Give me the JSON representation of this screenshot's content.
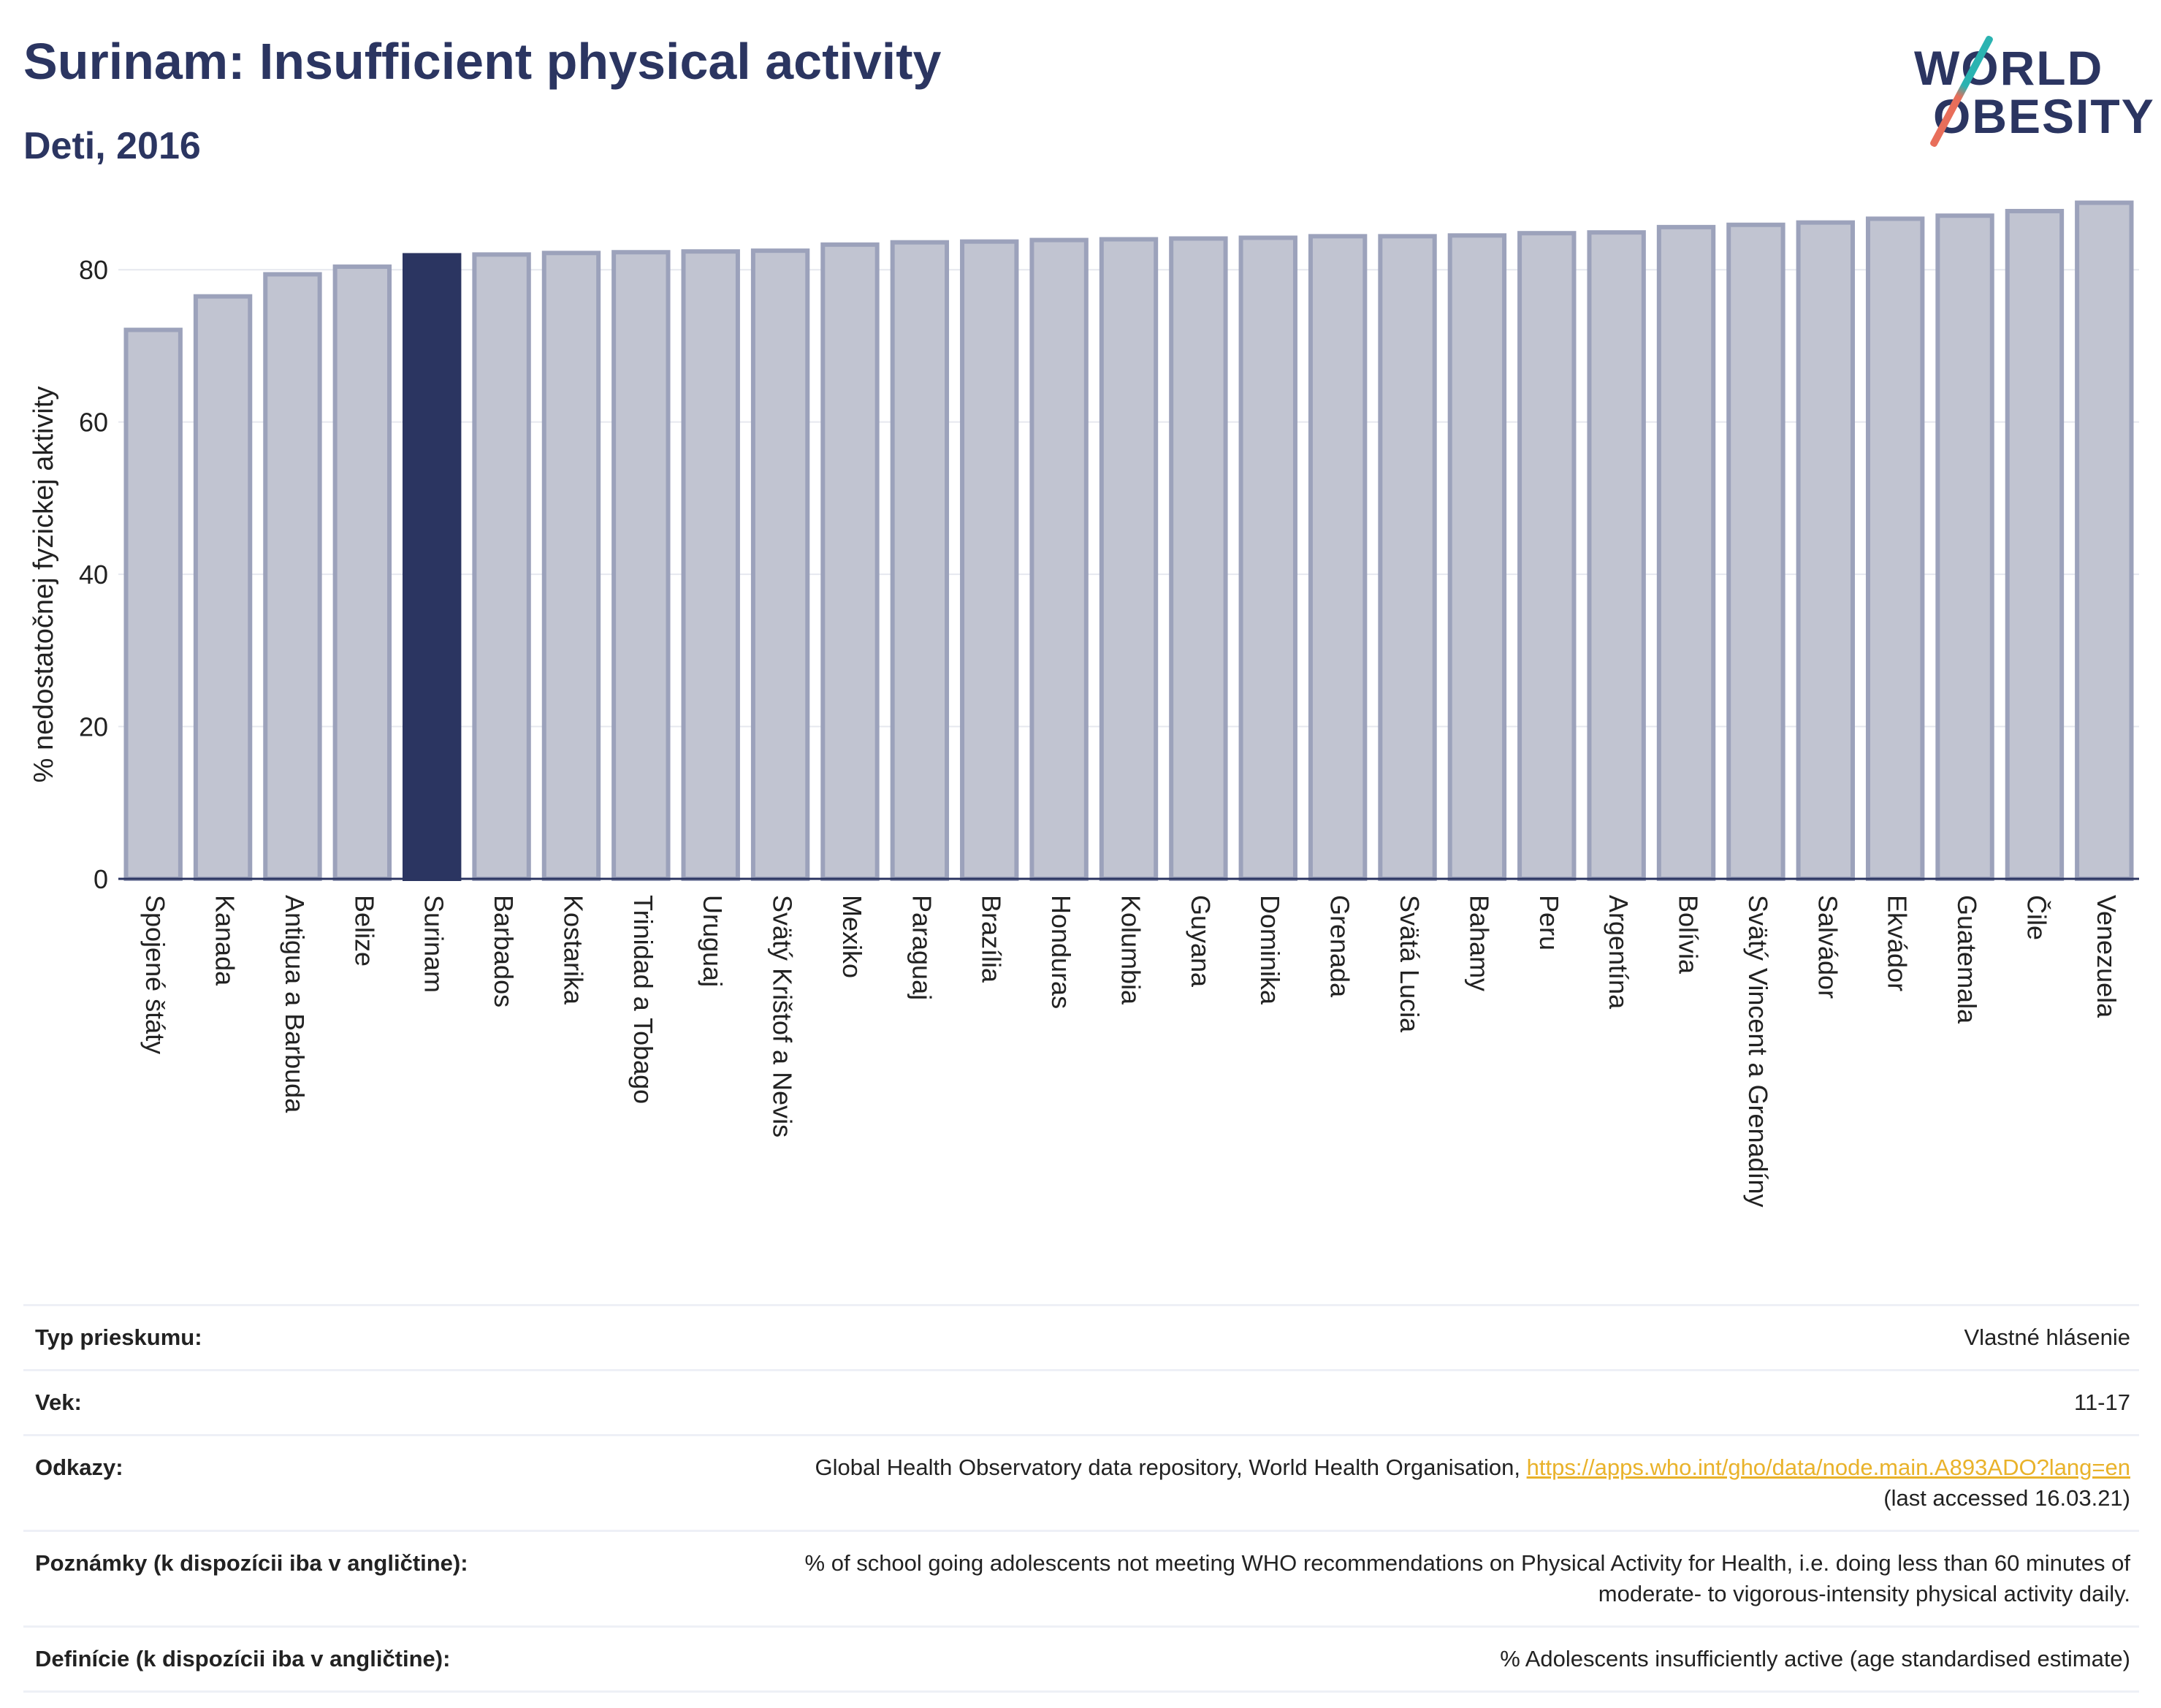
{
  "header": {
    "title": "Surinam: Insufficient physical activity",
    "subtitle": "Deti, 2016"
  },
  "logo": {
    "line1": "WORLD",
    "line2": "OBESITY"
  },
  "chart_data": {
    "type": "bar",
    "ylabel": "% nedostatočnej fyzickej aktivity",
    "ylim": [
      0,
      90
    ],
    "yticks": [
      0,
      20,
      40,
      60,
      80
    ],
    "grid": true,
    "highlight": "Surinam",
    "colors": {
      "bar": "#c1c4d1",
      "bar_edge": "#9ca2bb",
      "highlight": "#2b3561",
      "axis": "#2b3561",
      "grid": "#e6e8ef"
    },
    "categories": [
      "Spojené štáty",
      "Kanada",
      "Antigua a Barbuda",
      "Belize",
      "Surinam",
      "Barbados",
      "Kostarika",
      "Trinidad a Tobago",
      "Uruguaj",
      "Svätý Krištof a Nevis",
      "Mexiko",
      "Paraguaj",
      "Brazília",
      "Honduras",
      "Kolumbia",
      "Guyana",
      "Dominika",
      "Grenada",
      "Svätá Lucia",
      "Bahamy",
      "Peru",
      "Argentína",
      "Bolívia",
      "Svätý Vincent a Grenadíny",
      "Salvádor",
      "Ekvádor",
      "Guatemala",
      "Čile",
      "Venezuela"
    ],
    "values": [
      72.1,
      76.5,
      79.4,
      80.4,
      81.9,
      82.0,
      82.2,
      82.3,
      82.4,
      82.5,
      83.3,
      83.6,
      83.7,
      83.9,
      84.0,
      84.1,
      84.2,
      84.4,
      84.4,
      84.5,
      84.8,
      84.9,
      85.6,
      85.9,
      86.2,
      86.7,
      87.1,
      87.7,
      88.8
    ]
  },
  "meta": {
    "rows": [
      {
        "label": "Typ prieskumu:",
        "value": "Vlastné hlásenie"
      },
      {
        "label": "Vek:",
        "value": "11-17"
      },
      {
        "label": "Odkazy:",
        "value_prefix": "Global Health Observatory data repository, World Health Organisation, ",
        "link": "https://apps.who.int/gho/data/node.main.A893ADO?lang=en",
        "value_suffix": "(last accessed 16.03.21)"
      },
      {
        "label": "Poznámky (k dispozícii iba v angličtine):",
        "value": "% of school going adolescents not meeting WHO recommendations on Physical Activity for Health, i.e. doing less than 60 minutes of moderate- to vigorous-intensity physical activity daily."
      },
      {
        "label": "Definície (k dispozícii iba v angličtine):",
        "value": "% Adolescents insufficiently active (age standardised estimate)"
      }
    ]
  }
}
